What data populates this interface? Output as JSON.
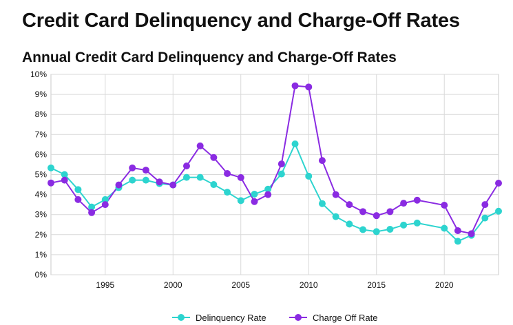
{
  "page": {
    "title": "Credit Card Delinquency and Charge-Off Rates"
  },
  "chart_data": {
    "type": "line",
    "title": "Annual Credit Card Delinquency and Charge-Off Rates",
    "xlabel": "",
    "ylabel": "",
    "xlim": [
      1991,
      2024
    ],
    "ylim": [
      0,
      10
    ],
    "grid": true,
    "legend_position": "bottom-center",
    "y_ticks": [
      "0%",
      "1%",
      "2%",
      "3%",
      "4%",
      "5%",
      "6%",
      "7%",
      "8%",
      "9%",
      "10%"
    ],
    "x_ticks": [
      {
        "value": 1995,
        "label": "1995"
      },
      {
        "value": 2000,
        "label": "2000"
      },
      {
        "value": 2005,
        "label": "2005"
      },
      {
        "value": 2010,
        "label": "2010"
      },
      {
        "value": 2015,
        "label": "2015"
      },
      {
        "value": 2020,
        "label": "2020"
      }
    ],
    "series": [
      {
        "name": "Delinquency Rate",
        "color": "#2dd4cf",
        "points": [
          [
            1991,
            5.33
          ],
          [
            1992,
            5.0
          ],
          [
            1993,
            4.25
          ],
          [
            1994,
            3.38
          ],
          [
            1995,
            3.75
          ],
          [
            1996,
            4.35
          ],
          [
            1997,
            4.72
          ],
          [
            1998,
            4.72
          ],
          [
            1999,
            4.55
          ],
          [
            2000,
            4.48
          ],
          [
            2001,
            4.86
          ],
          [
            2002,
            4.86
          ],
          [
            2003,
            4.5
          ],
          [
            2004,
            4.12
          ],
          [
            2005,
            3.7
          ],
          [
            2006,
            4.02
          ],
          [
            2007,
            4.27
          ],
          [
            2008,
            5.03
          ],
          [
            2009,
            6.53
          ],
          [
            2010,
            4.92
          ],
          [
            2011,
            3.55
          ],
          [
            2012,
            2.9
          ],
          [
            2013,
            2.53
          ],
          [
            2014,
            2.25
          ],
          [
            2015,
            2.15
          ],
          [
            2016,
            2.27
          ],
          [
            2017,
            2.48
          ],
          [
            2018,
            2.58
          ],
          [
            2020,
            2.32
          ],
          [
            2021,
            1.67
          ],
          [
            2022,
            1.97
          ],
          [
            2023,
            2.83
          ],
          [
            2024,
            3.17
          ]
        ]
      },
      {
        "name": "Charge Off Rate",
        "color": "#8a2be2",
        "points": [
          [
            1991,
            4.58
          ],
          [
            1992,
            4.72
          ],
          [
            1993,
            3.75
          ],
          [
            1994,
            3.1
          ],
          [
            1995,
            3.5
          ],
          [
            1996,
            4.48
          ],
          [
            1997,
            5.33
          ],
          [
            1998,
            5.22
          ],
          [
            1999,
            4.63
          ],
          [
            2000,
            4.48
          ],
          [
            2001,
            5.43
          ],
          [
            2002,
            6.43
          ],
          [
            2003,
            5.85
          ],
          [
            2004,
            5.05
          ],
          [
            2005,
            4.85
          ],
          [
            2006,
            3.65
          ],
          [
            2007,
            4.0
          ],
          [
            2008,
            5.53
          ],
          [
            2009,
            9.43
          ],
          [
            2010,
            9.37
          ],
          [
            2011,
            5.7
          ],
          [
            2012,
            4.0
          ],
          [
            2013,
            3.5
          ],
          [
            2014,
            3.15
          ],
          [
            2015,
            2.95
          ],
          [
            2016,
            3.15
          ],
          [
            2017,
            3.57
          ],
          [
            2018,
            3.72
          ],
          [
            2020,
            3.47
          ],
          [
            2021,
            2.2
          ],
          [
            2022,
            2.05
          ],
          [
            2023,
            3.5
          ],
          [
            2024,
            4.57
          ]
        ]
      }
    ]
  }
}
